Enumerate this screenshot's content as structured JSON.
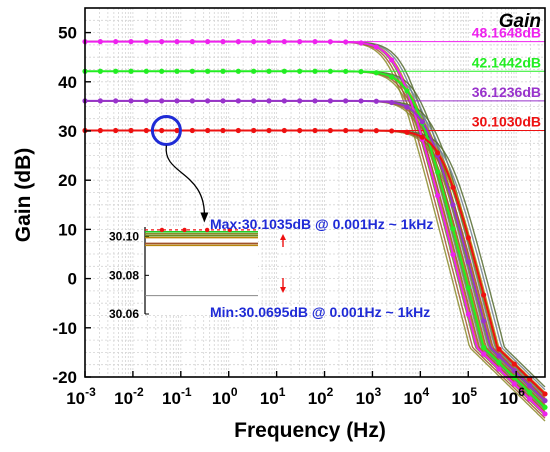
{
  "chart_data": {
    "type": "line",
    "title": "Gain",
    "xlabel": "Frequency (Hz)",
    "ylabel": "Gain (dB)",
    "xscale": "log",
    "xlim": [
      0.001,
      4000000
    ],
    "ylim": [
      -20,
      55
    ],
    "grid": true,
    "x_ticks": [
      {
        "value": 0.001,
        "base": "10",
        "exp": "-3"
      },
      {
        "value": 0.01,
        "base": "10",
        "exp": "-2"
      },
      {
        "value": 0.1,
        "base": "10",
        "exp": "-1"
      },
      {
        "value": 1,
        "base": "10",
        "exp": "0"
      },
      {
        "value": 10,
        "base": "10",
        "exp": "1"
      },
      {
        "value": 100,
        "base": "10",
        "exp": "2"
      },
      {
        "value": 1000,
        "base": "10",
        "exp": "3"
      },
      {
        "value": 10000,
        "base": "10",
        "exp": "4"
      },
      {
        "value": 100000,
        "base": "10",
        "exp": "5"
      },
      {
        "value": 1000000,
        "base": "10",
        "exp": "6"
      }
    ],
    "y_ticks": [
      -20,
      -10,
      0,
      10,
      20,
      30,
      40,
      50
    ],
    "series": [
      {
        "name": "48.1648dB",
        "color": "#ee22ee",
        "dc_gain": 48.1648,
        "corner_hz": 3500
      },
      {
        "name": "42.1442dB",
        "color": "#22ee22",
        "dc_gain": 42.1442,
        "corner_hz": 7000
      },
      {
        "name": "36.1236dB",
        "color": "#9933cc",
        "dc_gain": 36.1236,
        "corner_hz": 14000
      },
      {
        "name": "30.1030dB",
        "color": "#ee1111",
        "dc_gain": 30.103,
        "corner_hz": 28000
      }
    ],
    "inset": {
      "y_ticks": [
        "30.10",
        "30.08",
        "30.06"
      ],
      "ylim": [
        30.06,
        30.105
      ],
      "max_value": 30.1035,
      "min_value": 30.0695
    },
    "annotations": {
      "max": "Max:30.1035dB @ 0.001Hz ~ 1kHz",
      "min": "Min:30.0695dB @ 0.001Hz ~ 1kHz"
    }
  }
}
